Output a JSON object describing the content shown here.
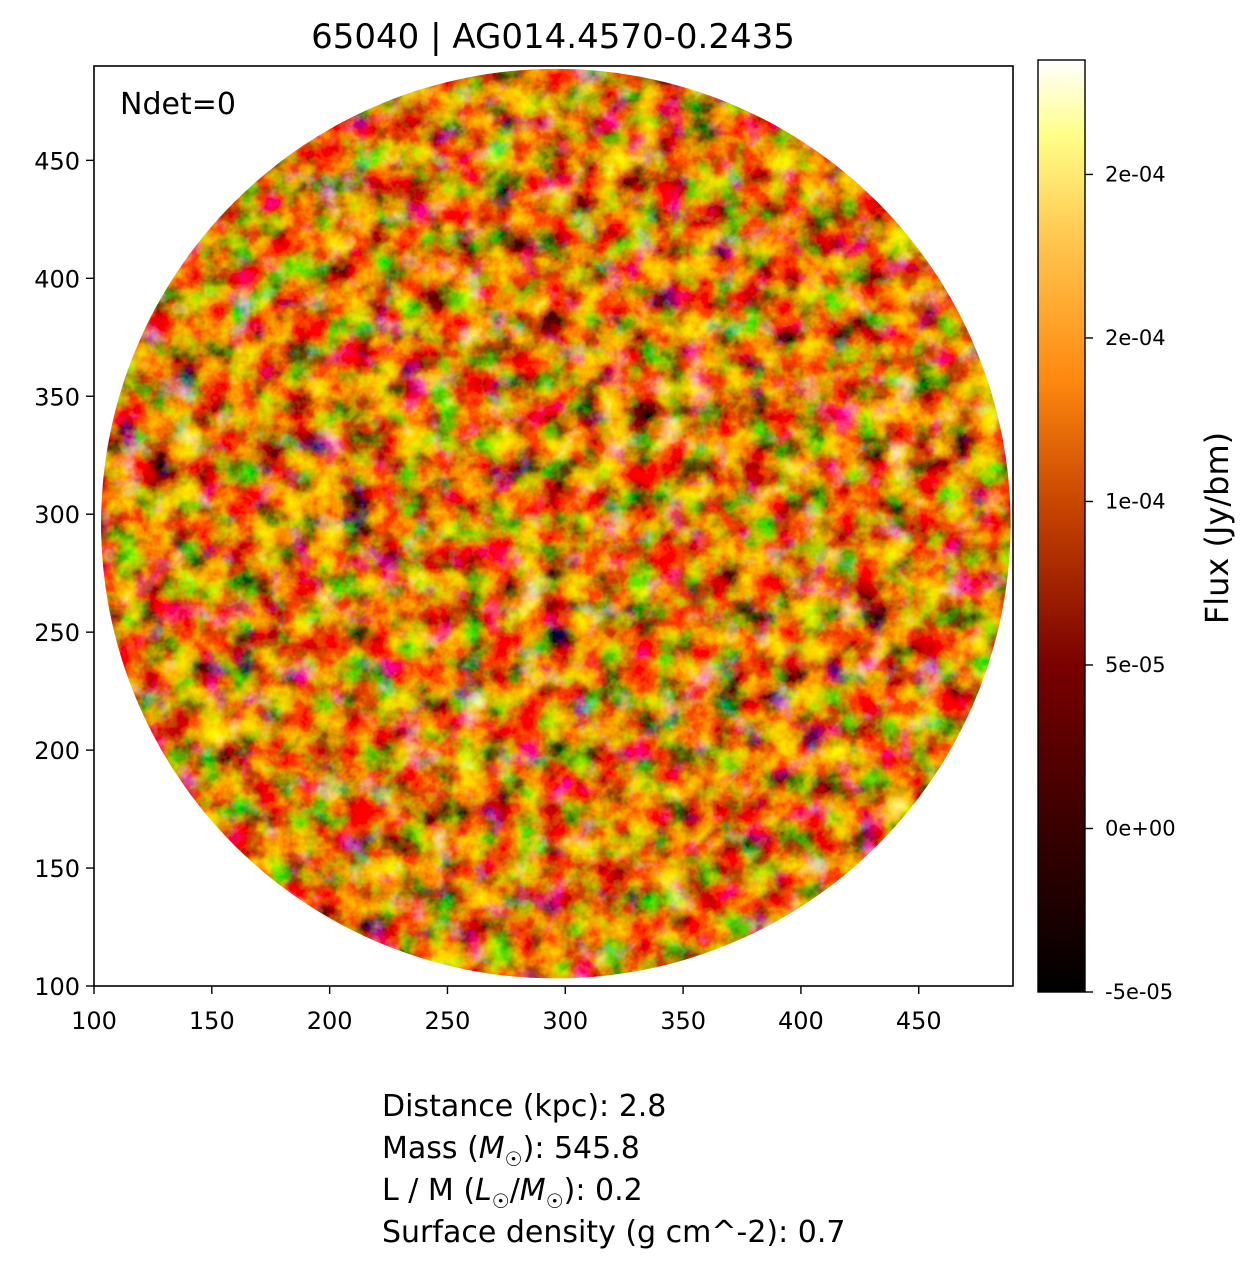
{
  "chart_data": {
    "type": "heatmap",
    "title": "65040 | AG014.4570-0.2435",
    "annotation": "Ndet=0",
    "xlim": [
      100,
      490
    ],
    "ylim": [
      100,
      490
    ],
    "x_ticks": [
      100,
      150,
      200,
      250,
      300,
      350,
      400,
      450
    ],
    "y_ticks": [
      100,
      150,
      200,
      250,
      300,
      350,
      400,
      450
    ],
    "mask": {
      "shape": "circle",
      "center": [
        296,
        296
      ],
      "radius": 193
    },
    "colormap": "afmhot",
    "colorbar": {
      "label": "Flux (Jy/bm)",
      "range": [
        -5e-05,
        0.000235
      ],
      "ticks": [
        {
          "value": -5e-05,
          "label": "-5e-05"
        },
        {
          "value": 0.0,
          "label": "0e+00"
        },
        {
          "value": 5e-05,
          "label": "5e-05"
        },
        {
          "value": 0.0001,
          "label": "1e-04"
        },
        {
          "value": 0.00015,
          "label": "2e-04"
        },
        {
          "value": 0.0002,
          "label": "2e-04"
        }
      ]
    }
  },
  "info": {
    "distance": {
      "label": "Distance (kpc): ",
      "value": "2.8"
    },
    "mass": {
      "prefix": "Mass (",
      "sym": "M",
      "suffix": "): ",
      "value": "545.8"
    },
    "lm": {
      "prefix": "L / M (",
      "sym1": "L",
      "mid": "/",
      "sym2": "M",
      "suffix": "): ",
      "value": "0.2"
    },
    "surface_density": {
      "label": "Surface density (g cm^-2): ",
      "value": "0.7"
    }
  }
}
